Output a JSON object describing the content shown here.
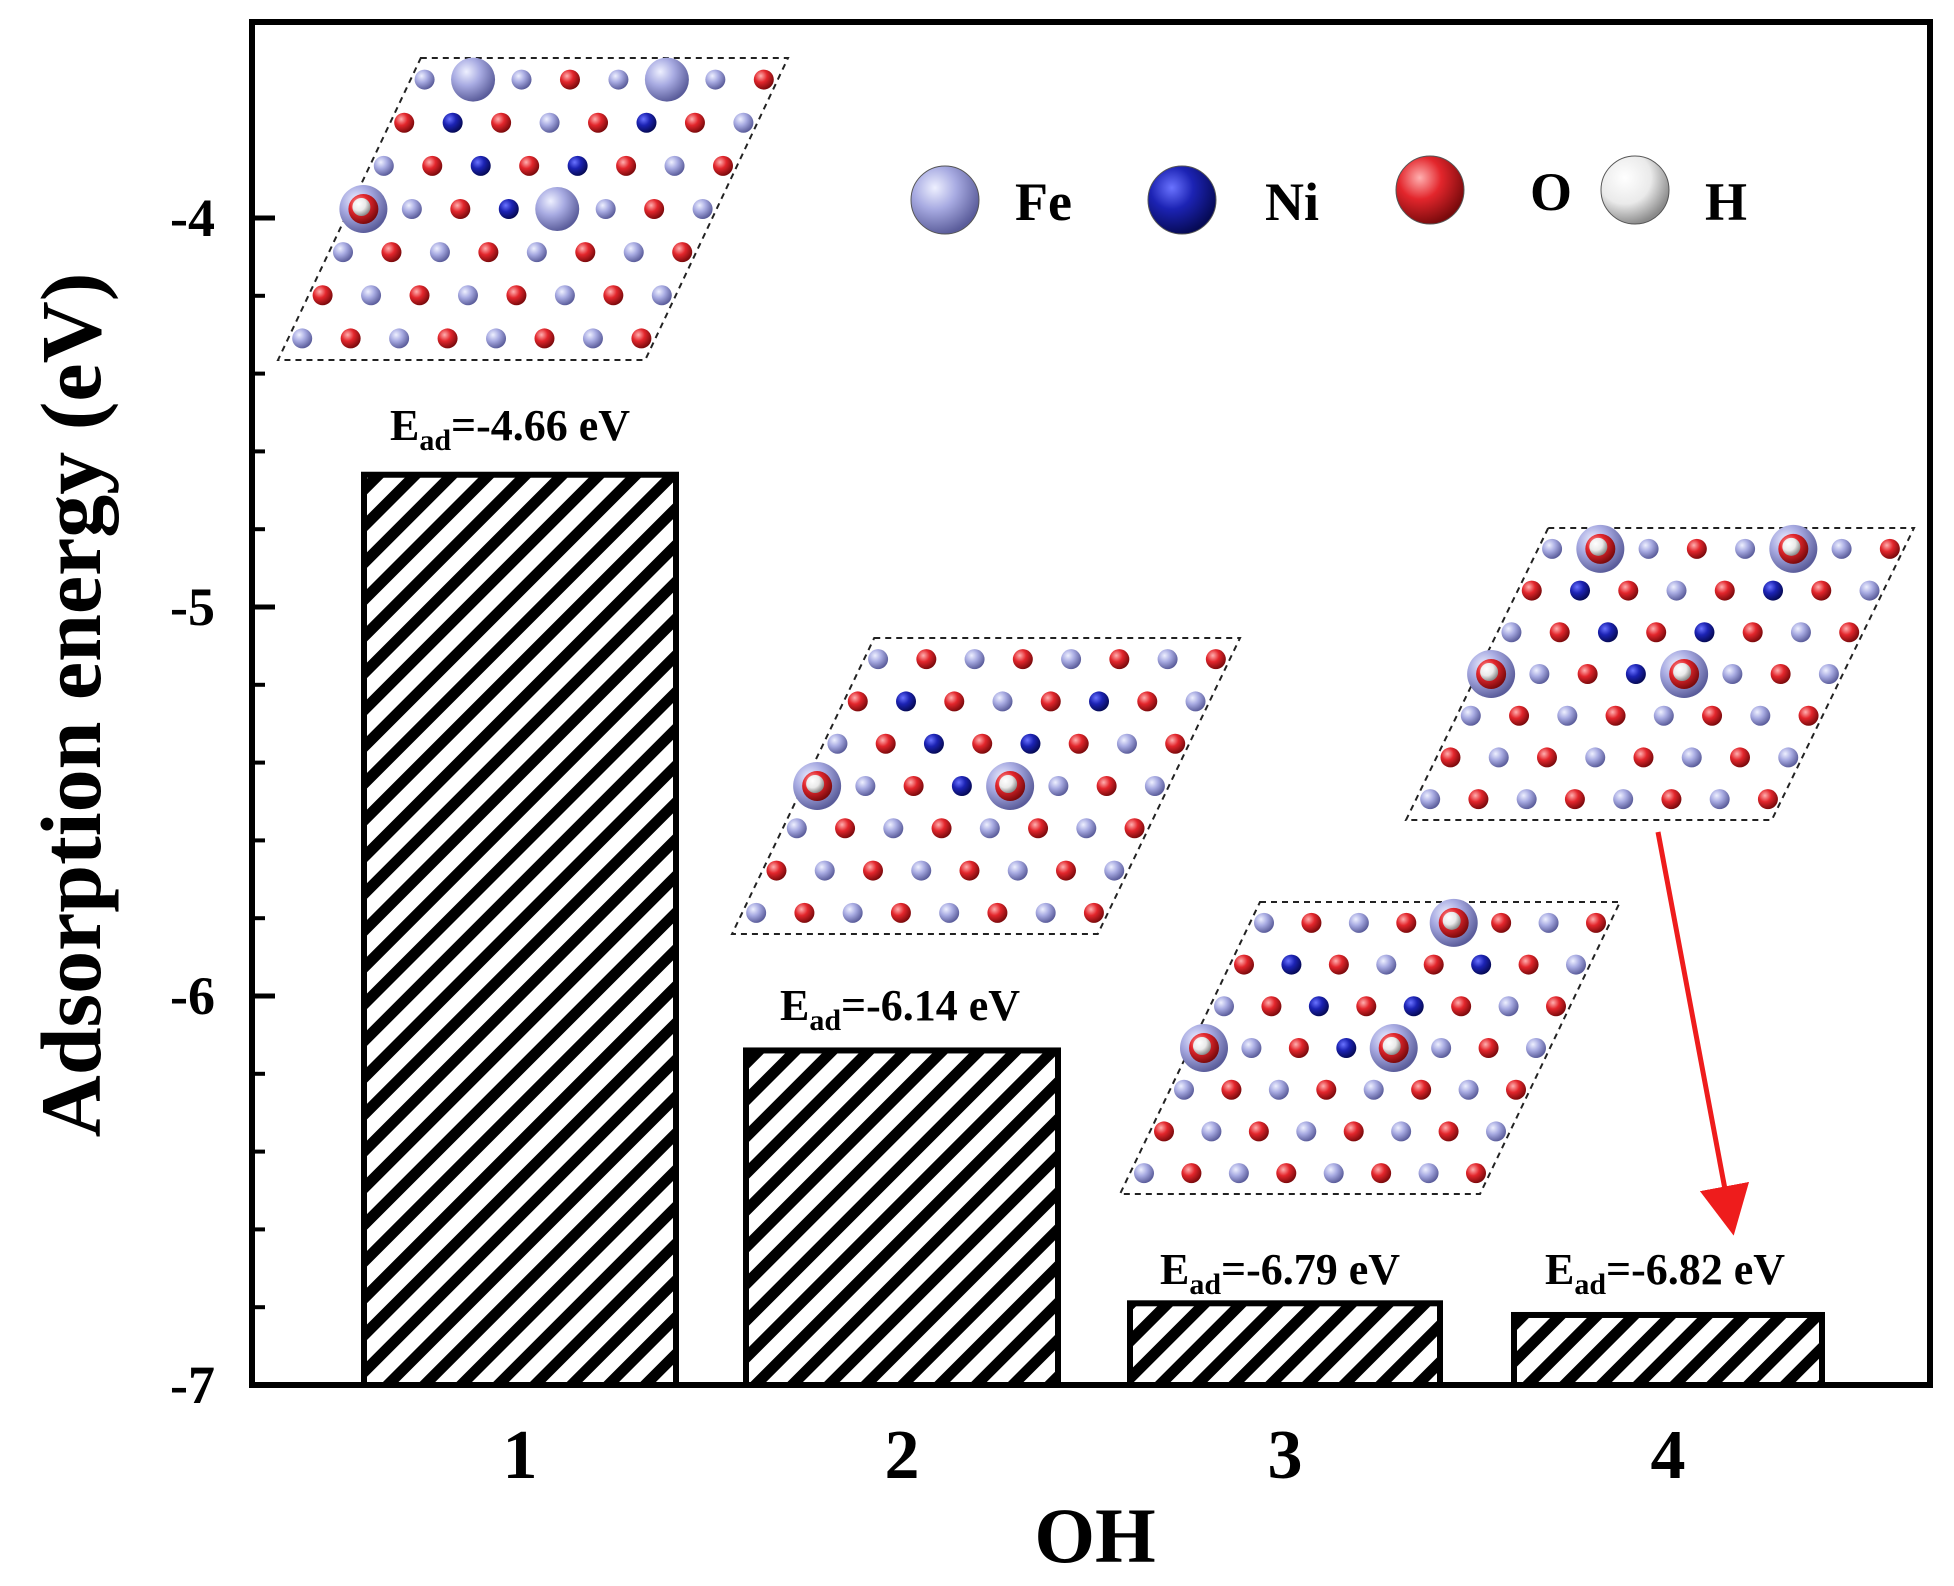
{
  "chart_data": {
    "type": "bar",
    "categories": [
      "1",
      "2",
      "3",
      "4"
    ],
    "values": [
      -4.66,
      -6.14,
      -6.79,
      -6.82
    ],
    "baseline": -7,
    "ylim": [
      -7,
      -3.6
    ],
    "yticks": [
      -7,
      -6,
      -5,
      -4
    ],
    "ytick_labels": [
      "-7",
      "-6",
      "-5",
      "-4"
    ],
    "xlabel": "OH",
    "ylabel": "Adsorption energy (eV)",
    "title": "",
    "grid": false,
    "bar_pattern": "diagonal-hatch",
    "annotations": [
      {
        "bar": "1",
        "prefix": "E",
        "sub": "ad",
        "text": "=-4.66 eV"
      },
      {
        "bar": "2",
        "prefix": "E",
        "sub": "ad",
        "text": "=-6.14 eV"
      },
      {
        "bar": "3",
        "prefix": "E",
        "sub": "ad",
        "text": "=-6.79 eV"
      },
      {
        "bar": "4",
        "prefix": "E",
        "sub": "ad",
        "text": "=-6.82 eV"
      }
    ],
    "legend": [
      {
        "label": "Fe",
        "color": "#a6a9e0"
      },
      {
        "label": "Ni",
        "color": "#1c23b4"
      },
      {
        "label": "O",
        "color": "#e3262c"
      },
      {
        "label": "H",
        "color": "#f2f2f2"
      }
    ],
    "inset_structures": [
      {
        "bar": "1",
        "oh_sites": 1
      },
      {
        "bar": "2",
        "oh_sites": 2
      },
      {
        "bar": "3",
        "oh_sites": 3
      },
      {
        "bar": "4",
        "oh_sites": 4
      }
    ],
    "colors": {
      "axis": "#000000",
      "arrow": "#ee1c1c"
    }
  }
}
